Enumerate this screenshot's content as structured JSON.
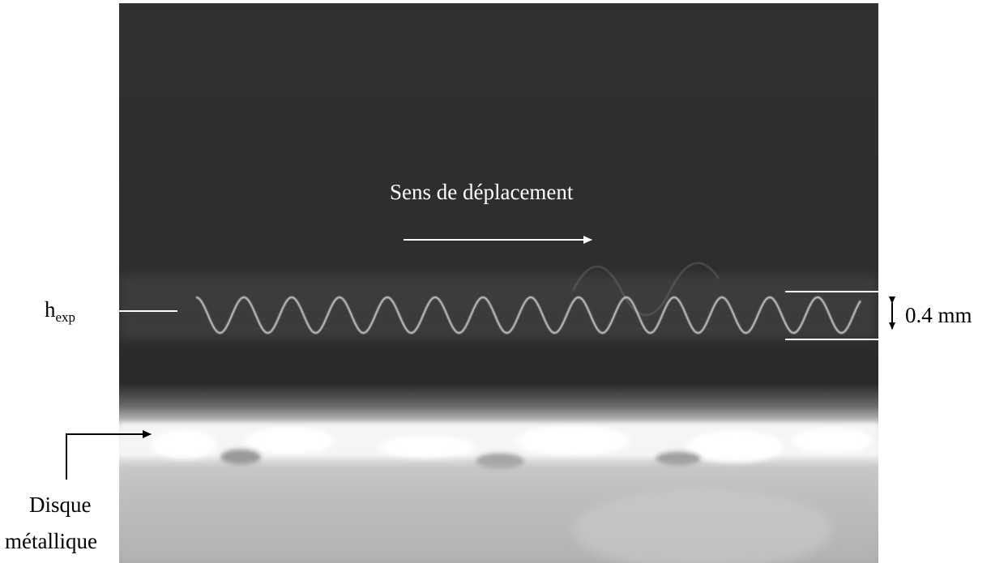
{
  "labels": {
    "direction": "Sens de déplacement",
    "h_main": "h",
    "h_sub": "exp",
    "dimension": "0.4 mm",
    "disc_line1": "Disque",
    "disc_line2": "métallique"
  },
  "colors": {
    "background_top": "#2f2f2f",
    "background_mid": "#2b2b2b",
    "wave": "#cfcfcf",
    "bright_band": "#f4f4f4",
    "disc_surface": "#c8c8c8",
    "annotation_white": "#ffffff",
    "annotation_black": "#000000"
  }
}
